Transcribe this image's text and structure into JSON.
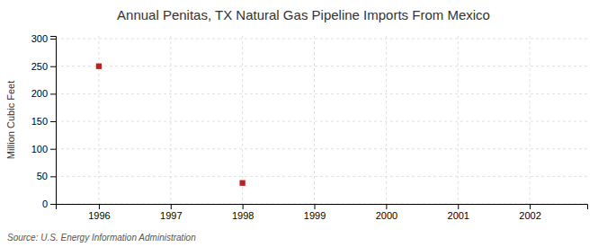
{
  "chart_data": {
    "type": "scatter",
    "title": "Annual Penitas, TX Natural Gas Pipeline Imports From Mexico",
    "ylabel": "Million Cubic Feet",
    "annotation": "Source: U.S. Energy Information Administration",
    "x": [
      1996,
      1998
    ],
    "values": [
      250,
      38
    ],
    "color": "#bb2222",
    "marker": "square",
    "xlim": [
      1995.4,
      2002.8
    ],
    "xticks": [
      1996,
      1997,
      1998,
      1999,
      2000,
      2001,
      2002
    ],
    "ylim": [
      0,
      305
    ],
    "yticks": [
      0,
      50,
      100,
      150,
      200,
      250,
      300
    ],
    "grid": true
  }
}
